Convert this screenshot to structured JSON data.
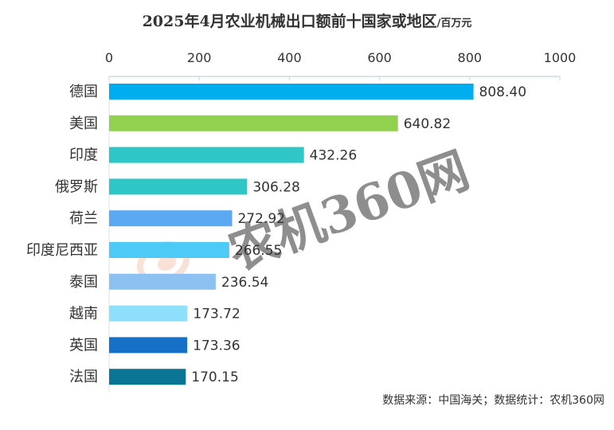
{
  "title": {
    "main": "2025年4月农业机械出口额前十国家或地区",
    "unit": "/百万元"
  },
  "watermark": {
    "text": "农机360网",
    "color": "#f3c9b6"
  },
  "source": "数据来源：中国海关；数据统计：农机360网",
  "chart_data": {
    "type": "bar",
    "orientation": "horizontal",
    "title": "2025年4月农业机械出口额前十国家或地区",
    "unit": "百万元",
    "categories": [
      "德国",
      "美国",
      "印度",
      "俄罗斯",
      "荷兰",
      "印度尼西亚",
      "泰国",
      "越南",
      "英国",
      "法国"
    ],
    "values": [
      808.4,
      640.82,
      432.26,
      306.28,
      272.92,
      266.55,
      236.54,
      173.72,
      173.36,
      170.15
    ],
    "value_labels": [
      "808.40",
      "640.82",
      "432.26",
      "306.28",
      "272.92",
      "266.55",
      "236.54",
      "173.72",
      "173.36",
      "170.15"
    ],
    "colors": [
      "#00aeef",
      "#92d050",
      "#2ec6c6",
      "#2ec6c6",
      "#5aa9f2",
      "#4dcaf5",
      "#8cc1f2",
      "#8ee0fa",
      "#1670c8",
      "#0b7596"
    ],
    "xlim": [
      0,
      1000
    ],
    "xticks": [
      0,
      200,
      400,
      600,
      800,
      1000
    ],
    "axis_position": "top",
    "grid": false,
    "legend": "none"
  }
}
